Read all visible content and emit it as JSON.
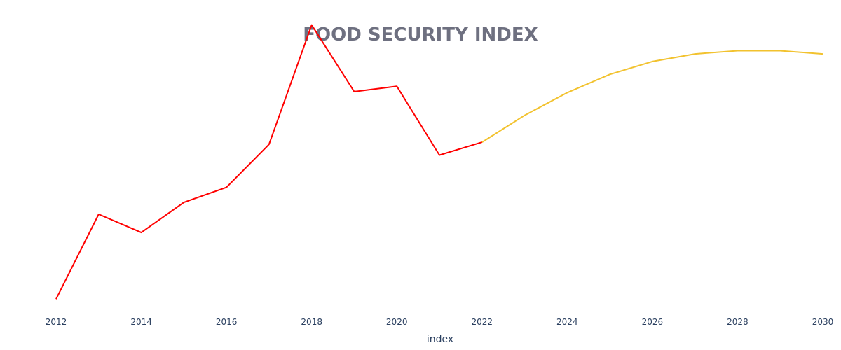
{
  "chart_data": {
    "type": "line",
    "title": "FOOD SECURITY INDEX",
    "xlabel": "index",
    "ylabel": "",
    "xlim": [
      2012,
      2030
    ],
    "ylim": [
      0,
      14
    ],
    "x_ticks": [
      2012,
      2014,
      2016,
      2018,
      2020,
      2022,
      2024,
      2026,
      2028,
      2030
    ],
    "y_axis_visible": false,
    "grid": false,
    "legend": "none",
    "series": [
      {
        "color": "#ff0000",
        "x": [
          2012,
          2013,
          2014,
          2015,
          2016,
          2017,
          2018,
          2019,
          2020,
          2021,
          2022
        ],
        "y": [
          1.0,
          4.95,
          4.1,
          5.5,
          6.2,
          8.2,
          13.75,
          10.65,
          10.9,
          7.7,
          8.3
        ]
      },
      {
        "color": "#f2c22e",
        "x": [
          2022,
          2023,
          2024,
          2025,
          2026,
          2027,
          2028,
          2029,
          2030
        ],
        "y": [
          8.3,
          9.55,
          10.6,
          11.45,
          12.05,
          12.4,
          12.55,
          12.55,
          12.4
        ]
      }
    ]
  }
}
